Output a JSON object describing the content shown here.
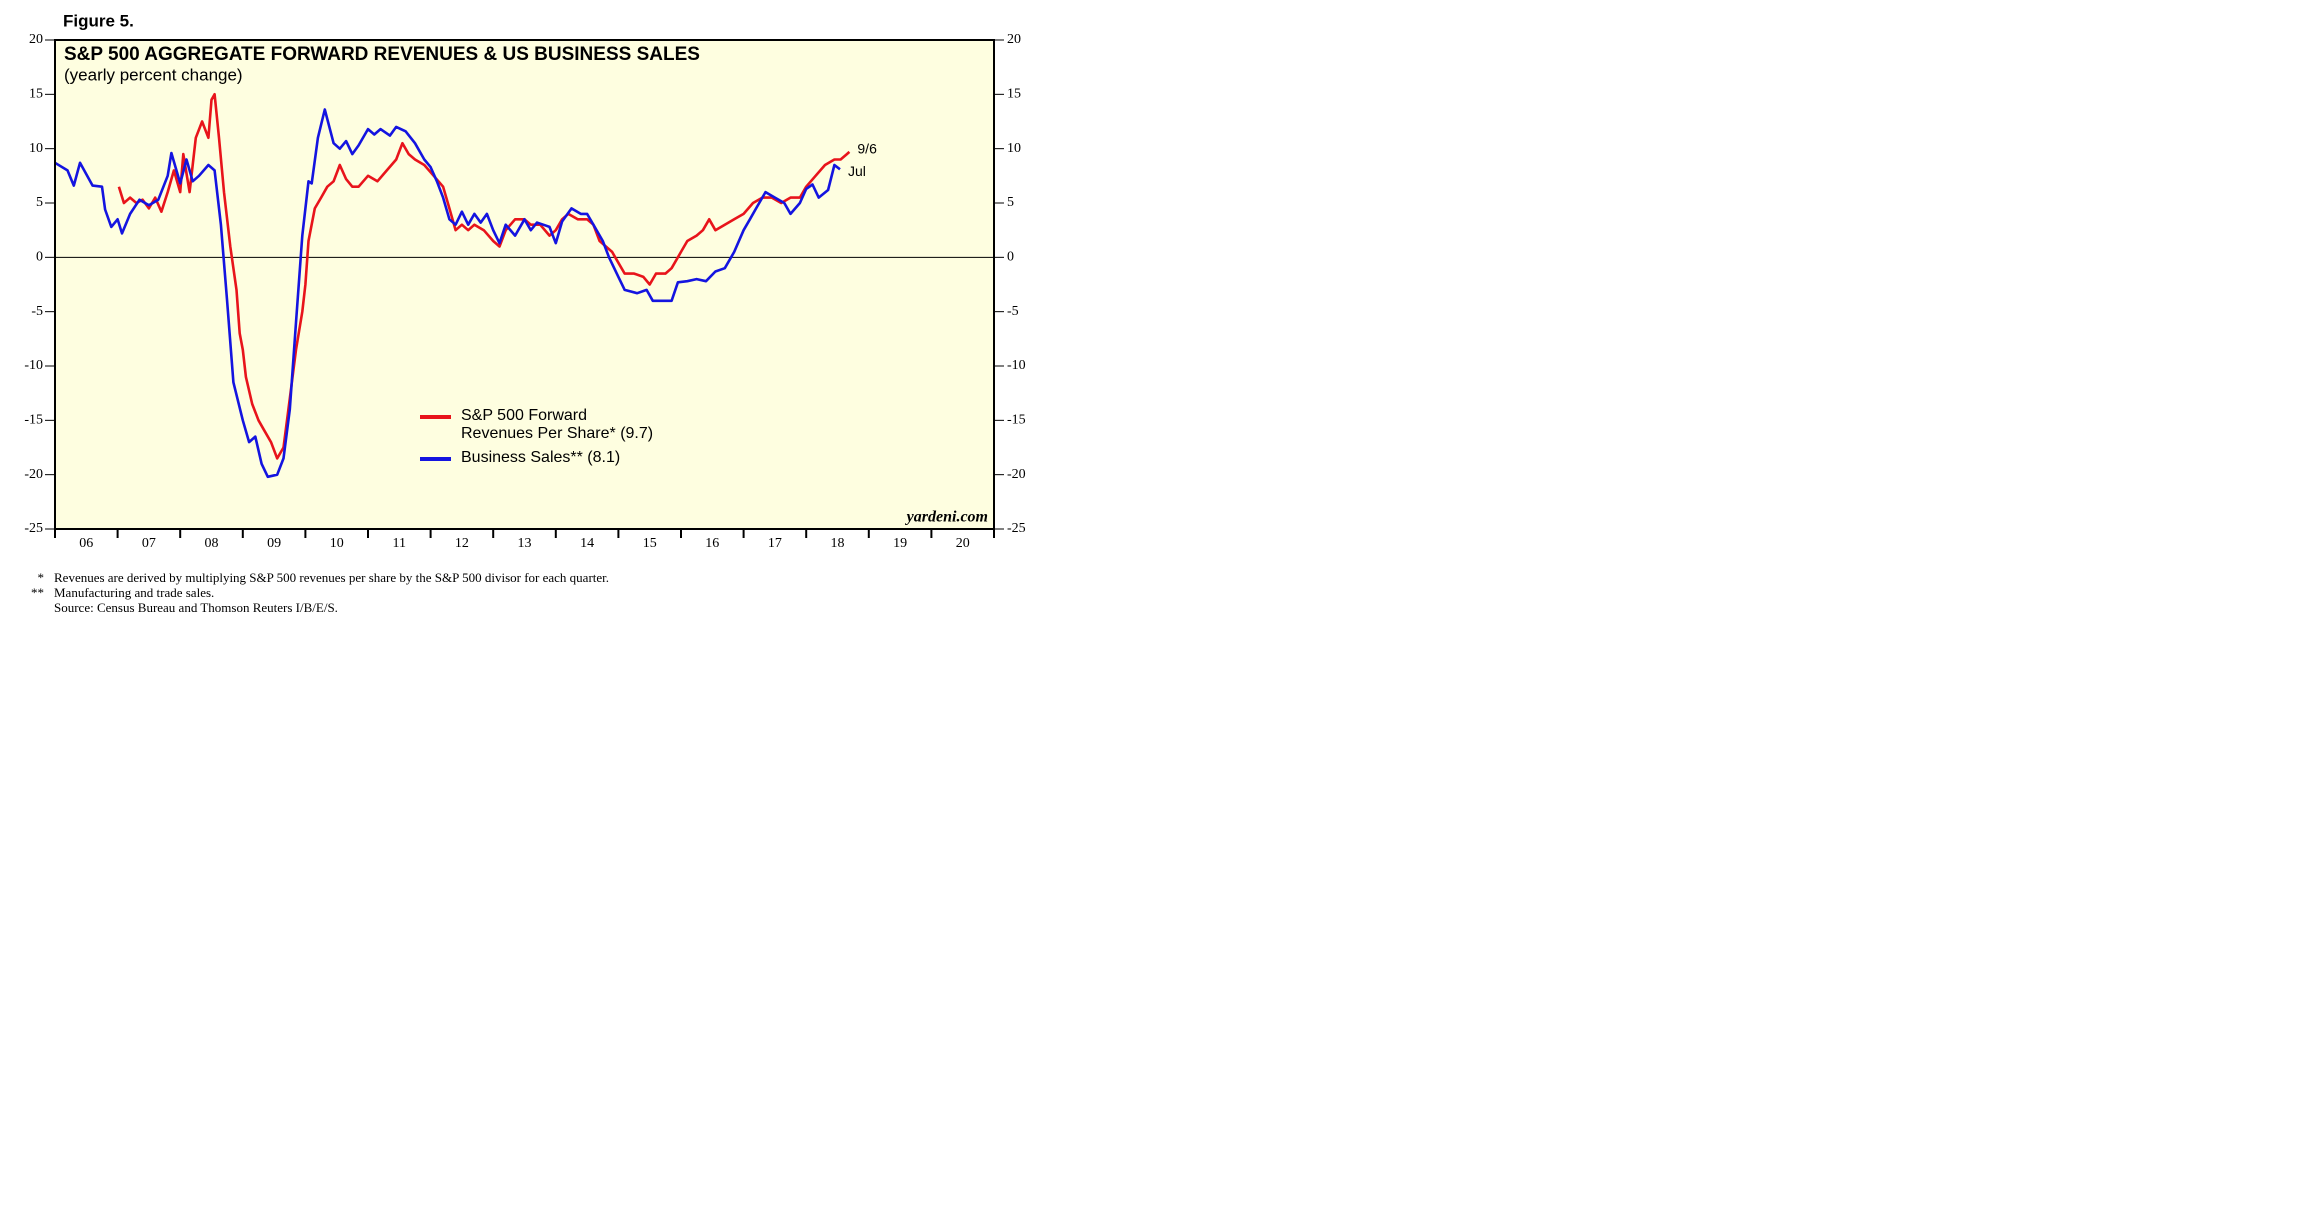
{
  "figure_label": "Figure 5.",
  "chart_data": {
    "type": "line",
    "title": "S&P 500 AGGREGATE FORWARD REVENUES & US BUSINESS SALES",
    "subtitle": "(yearly percent change)",
    "xlim": [
      2006,
      2021
    ],
    "xticks": [
      {
        "value": 2006.5,
        "label": "06"
      },
      {
        "value": 2007.5,
        "label": "07"
      },
      {
        "value": 2008.5,
        "label": "08"
      },
      {
        "value": 2009.5,
        "label": "09"
      },
      {
        "value": 2010.5,
        "label": "10"
      },
      {
        "value": 2011.5,
        "label": "11"
      },
      {
        "value": 2012.5,
        "label": "12"
      },
      {
        "value": 2013.5,
        "label": "13"
      },
      {
        "value": 2014.5,
        "label": "14"
      },
      {
        "value": 2015.5,
        "label": "15"
      },
      {
        "value": 2016.5,
        "label": "16"
      },
      {
        "value": 2017.5,
        "label": "17"
      },
      {
        "value": 2018.5,
        "label": "18"
      },
      {
        "value": 2019.5,
        "label": "19"
      },
      {
        "value": 2020.5,
        "label": "20"
      }
    ],
    "ylim": [
      -25,
      20
    ],
    "yticks": [
      -25,
      -20,
      -15,
      -10,
      -5,
      0,
      5,
      10,
      15,
      20
    ],
    "y2lim": [
      -25,
      20
    ],
    "y2ticks": [
      -25,
      -20,
      -15,
      -10,
      -5,
      0,
      5,
      10,
      15,
      20
    ],
    "background": "#fefee0",
    "series": [
      {
        "name": "S&P 500 Forward Revenues Per Share* (9.7)",
        "end_label": "9/6",
        "color": "#e8141b",
        "x": [
          2007.02,
          2007.1,
          2007.2,
          2007.3,
          2007.4,
          2007.5,
          2007.6,
          2007.7,
          2007.8,
          2007.9,
          2008.0,
          2008.05,
          2008.15,
          2008.25,
          2008.35,
          2008.45,
          2008.5,
          2008.55,
          2008.62,
          2008.7,
          2008.8,
          2008.9,
          2008.95,
          2009.0,
          2009.05,
          2009.15,
          2009.25,
          2009.35,
          2009.45,
          2009.55,
          2009.65,
          2009.75,
          2009.85,
          2009.95,
          2010.0,
          2010.05,
          2010.15,
          2010.25,
          2010.35,
          2010.45,
          2010.55,
          2010.65,
          2010.75,
          2010.85,
          2011.0,
          2011.15,
          2011.3,
          2011.45,
          2011.55,
          2011.65,
          2011.75,
          2011.9,
          2012.05,
          2012.2,
          2012.3,
          2012.4,
          2012.5,
          2012.6,
          2012.7,
          2012.85,
          2013.0,
          2013.1,
          2013.2,
          2013.35,
          2013.5,
          2013.6,
          2013.75,
          2013.9,
          2014.0,
          2014.1,
          2014.2,
          2014.35,
          2014.5,
          2014.6,
          2014.7,
          2014.8,
          2014.9,
          2015.0,
          2015.1,
          2015.25,
          2015.4,
          2015.5,
          2015.6,
          2015.75,
          2015.85,
          2016.0,
          2016.1,
          2016.25,
          2016.35,
          2016.45,
          2016.55,
          2016.7,
          2016.85,
          2017.0,
          2017.15,
          2017.3,
          2017.45,
          2017.6,
          2017.75,
          2017.9,
          2018.0,
          2018.15,
          2018.3,
          2018.45,
          2018.55,
          2018.65,
          2018.69
        ],
        "values": [
          6.5,
          5.0,
          5.5,
          5.0,
          5.3,
          4.5,
          5.5,
          4.2,
          6.0,
          8.0,
          6.0,
          9.5,
          6.0,
          11.0,
          12.5,
          11.0,
          14.5,
          15.0,
          11.0,
          6.0,
          1.0,
          -3.0,
          -7.0,
          -8.5,
          -11.0,
          -13.5,
          -15.0,
          -16.0,
          -17.0,
          -18.5,
          -17.5,
          -13.0,
          -8.5,
          -5.0,
          -2.5,
          1.5,
          4.5,
          5.5,
          6.5,
          7.0,
          8.5,
          7.2,
          6.5,
          6.5,
          7.5,
          7.0,
          8.0,
          9.0,
          10.5,
          9.5,
          9.0,
          8.5,
          7.5,
          6.5,
          4.5,
          2.5,
          3.0,
          2.5,
          3.0,
          2.5,
          1.5,
          1.0,
          2.5,
          3.5,
          3.5,
          3.0,
          3.0,
          2.0,
          2.5,
          3.5,
          4.0,
          3.5,
          3.5,
          3.0,
          1.5,
          1.0,
          0.5,
          -0.5,
          -1.5,
          -1.5,
          -1.8,
          -2.5,
          -1.5,
          -1.5,
          -1.0,
          0.5,
          1.5,
          2.0,
          2.5,
          3.5,
          2.5,
          3.0,
          3.5,
          4.0,
          5.0,
          5.5,
          5.5,
          5.0,
          5.5,
          5.5,
          6.5,
          7.5,
          8.5,
          9.0,
          9.0,
          9.5,
          9.7
        ]
      },
      {
        "name": "Business Sales** (8.1)",
        "end_label": "Jul",
        "color": "#1414e0",
        "x": [
          2006.0,
          2006.2,
          2006.3,
          2006.4,
          2006.6,
          2006.75,
          2006.8,
          2006.9,
          2007.0,
          2007.07,
          2007.2,
          2007.35,
          2007.5,
          2007.65,
          2007.8,
          2007.86,
          2008.0,
          2008.1,
          2008.2,
          2008.3,
          2008.45,
          2008.55,
          2008.65,
          2008.75,
          2008.85,
          2009.0,
          2009.1,
          2009.2,
          2009.3,
          2009.4,
          2009.55,
          2009.65,
          2009.75,
          2009.85,
          2009.95,
          2010.05,
          2010.1,
          2010.2,
          2010.31,
          2010.45,
          2010.55,
          2010.65,
          2010.75,
          2010.85,
          2011.0,
          2011.1,
          2011.2,
          2011.35,
          2011.45,
          2011.6,
          2011.75,
          2011.9,
          2012.0,
          2012.1,
          2012.2,
          2012.3,
          2012.4,
          2012.5,
          2012.6,
          2012.7,
          2012.8,
          2012.9,
          2013.0,
          2013.1,
          2013.2,
          2013.35,
          2013.5,
          2013.6,
          2013.7,
          2013.8,
          2013.9,
          2014.0,
          2014.1,
          2014.25,
          2014.4,
          2014.5,
          2014.6,
          2014.75,
          2014.85,
          2015.0,
          2015.1,
          2015.3,
          2015.45,
          2015.55,
          2015.7,
          2015.85,
          2015.95,
          2016.1,
          2016.25,
          2016.4,
          2016.55,
          2016.7,
          2016.85,
          2017.0,
          2017.1,
          2017.2,
          2017.35,
          2017.5,
          2017.65,
          2017.75,
          2017.9,
          2018.0,
          2018.1,
          2018.2,
          2018.35,
          2018.45,
          2018.54
        ],
        "values": [
          8.7,
          8.0,
          6.6,
          8.7,
          6.6,
          6.5,
          4.4,
          2.8,
          3.5,
          2.2,
          4.0,
          5.3,
          4.8,
          5.3,
          7.5,
          9.6,
          6.8,
          9.0,
          7.0,
          7.5,
          8.5,
          8.0,
          3.0,
          -4.0,
          -11.5,
          -15.0,
          -17.0,
          -16.5,
          -19.0,
          -20.2,
          -20.0,
          -18.5,
          -14.0,
          -6.0,
          2.0,
          7.0,
          6.8,
          11.0,
          13.6,
          10.5,
          10.0,
          10.7,
          9.5,
          10.3,
          11.8,
          11.3,
          11.8,
          11.2,
          12.0,
          11.6,
          10.5,
          9.0,
          8.3,
          7.0,
          5.5,
          3.5,
          3.0,
          4.2,
          3.0,
          4.0,
          3.2,
          4.0,
          2.5,
          1.3,
          3.0,
          2.0,
          3.5,
          2.5,
          3.2,
          3.0,
          2.8,
          1.3,
          3.3,
          4.5,
          4.0,
          4.0,
          3.0,
          1.5,
          0,
          -1.8,
          -3.0,
          -3.3,
          -3.0,
          -4.0,
          -4.0,
          -4.0,
          -2.3,
          -2.2,
          -2.0,
          -2.2,
          -1.3,
          -1.0,
          0.5,
          2.5,
          3.5,
          4.5,
          6.0,
          5.5,
          5.0,
          4.0,
          5.0,
          6.3,
          6.7,
          5.5,
          6.2,
          8.5,
          8.1
        ]
      }
    ],
    "source_credit": "yardeni.com"
  },
  "footnotes": [
    {
      "mark": "*",
      "text": "Revenues are derived by multiplying S&P 500 revenues per share by the S&P 500 divisor for each quarter."
    },
    {
      "mark": "**",
      "text": "Manufacturing and trade sales."
    },
    {
      "mark": null,
      "text": "Source: Census Bureau and Thomson Reuters I/B/E/S."
    }
  ]
}
